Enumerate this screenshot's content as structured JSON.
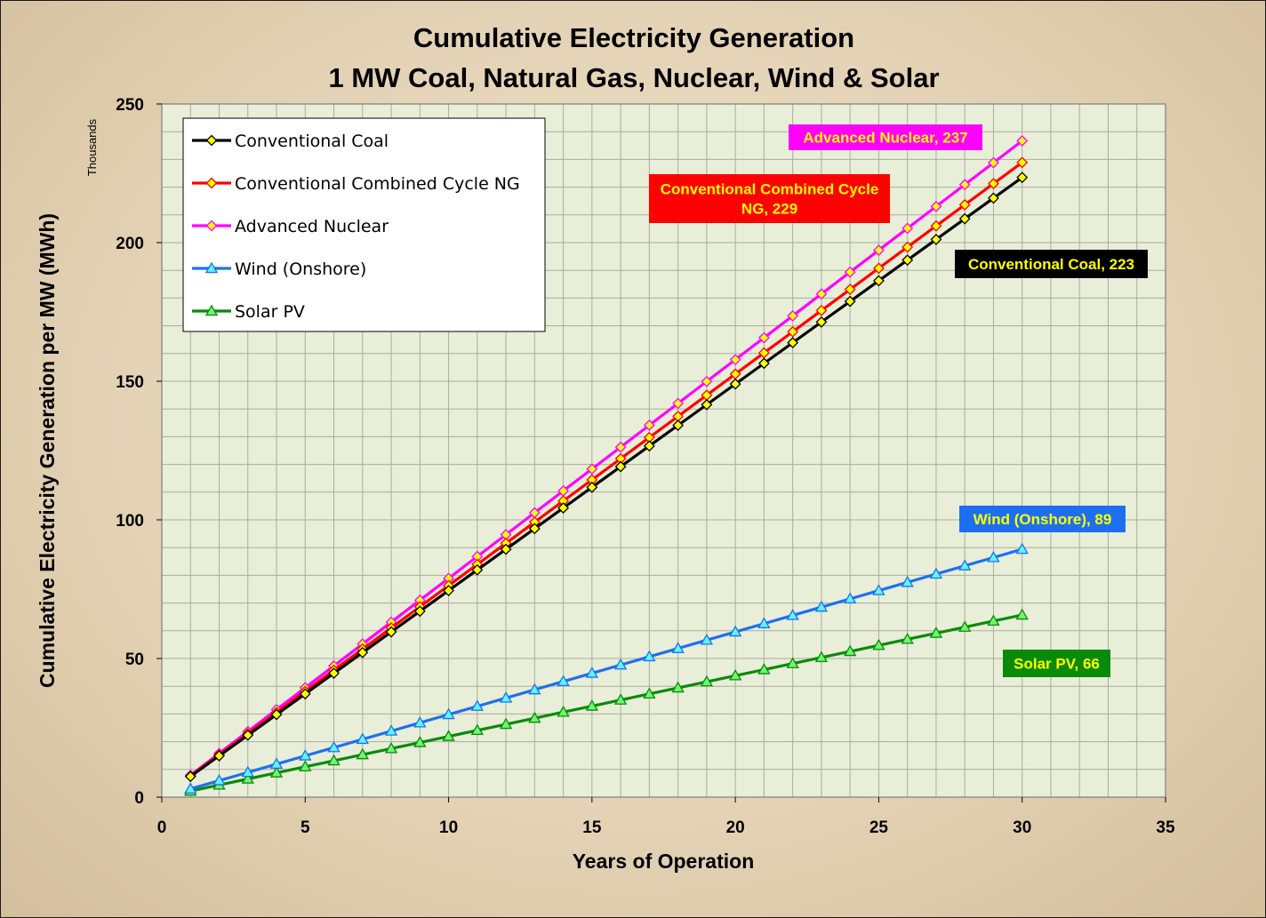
{
  "chart_data": {
    "type": "line",
    "title": "Cumulative Electricity Generation",
    "subtitle": "1 MW Coal, Natural Gas, Nuclear, Wind & Solar",
    "xlabel": "Years of Operation",
    "ylabel": "Cumulative Electricity Generation per MW  (MWh)",
    "yunits": "Thousands",
    "xlim": [
      0,
      35
    ],
    "ylim": [
      0,
      250
    ],
    "xticks": [
      0,
      5,
      10,
      15,
      20,
      25,
      30,
      35
    ],
    "yticks": [
      0,
      50,
      100,
      150,
      200,
      250
    ],
    "grid": true,
    "legend_position": "top-left",
    "x": [
      1,
      2,
      3,
      4,
      5,
      6,
      7,
      8,
      9,
      10,
      11,
      12,
      13,
      14,
      15,
      16,
      17,
      18,
      19,
      20,
      21,
      22,
      23,
      24,
      25,
      26,
      27,
      28,
      29,
      30
    ],
    "series": [
      {
        "name": "Conventional Coal",
        "color": "#000000",
        "marker": "diamond",
        "marker_fill": "#ffff00",
        "per_year": 7.45,
        "values": [
          7.45,
          14.9,
          22.35,
          29.8,
          37.25,
          44.7,
          52.15,
          59.6,
          67.05,
          74.5,
          81.95,
          89.4,
          96.85,
          104.3,
          111.75,
          119.2,
          126.65,
          134.1,
          141.55,
          149,
          156.45,
          163.9,
          171.35,
          178.8,
          186.25,
          193.7,
          201.15,
          208.6,
          216.05,
          223.5
        ]
      },
      {
        "name": "Conventional Combined Cycle NG",
        "color": "#ff0000",
        "marker": "diamond",
        "marker_fill": "#ffff00",
        "per_year": 7.63,
        "values": [
          7.63,
          15.26,
          22.89,
          30.52,
          38.15,
          45.78,
          53.41,
          61.04,
          68.67,
          76.3,
          83.93,
          91.56,
          99.19,
          106.82,
          114.45,
          122.08,
          129.71,
          137.34,
          144.97,
          152.6,
          160.23,
          167.86,
          175.49,
          183.12,
          190.75,
          198.38,
          206.01,
          213.64,
          221.27,
          228.9
        ]
      },
      {
        "name": "Advanced Nuclear",
        "color": "#ff00ff",
        "marker": "diamond",
        "marker_fill": "#ffff00",
        "per_year": 7.89,
        "values": [
          7.89,
          15.78,
          23.67,
          31.56,
          39.45,
          47.34,
          55.23,
          63.12,
          71.01,
          78.9,
          86.79,
          94.68,
          102.57,
          110.46,
          118.35,
          126.24,
          134.13,
          142.02,
          149.91,
          157.8,
          165.69,
          173.58,
          181.47,
          189.36,
          197.25,
          205.14,
          213.03,
          220.92,
          228.81,
          236.7
        ]
      },
      {
        "name": "Wind (Onshore)",
        "color": "#1e6ff0",
        "marker": "triangle",
        "marker_fill": "#5ff5ff",
        "per_year": 2.98,
        "values": [
          2.98,
          5.96,
          8.94,
          11.92,
          14.9,
          17.88,
          20.86,
          23.84,
          26.82,
          29.8,
          32.78,
          35.76,
          38.74,
          41.72,
          44.7,
          47.68,
          50.66,
          53.64,
          56.62,
          59.6,
          62.58,
          65.56,
          68.54,
          71.52,
          74.5,
          77.48,
          80.46,
          83.44,
          86.42,
          89.4
        ]
      },
      {
        "name": "Solar PV",
        "color": "#0a8a0a",
        "marker": "triangle",
        "marker_fill": "#6ff56f",
        "per_year": 2.19,
        "values": [
          2.19,
          4.38,
          6.57,
          8.76,
          10.95,
          13.14,
          15.33,
          17.52,
          19.71,
          21.9,
          24.09,
          26.28,
          28.47,
          30.66,
          32.85,
          35.04,
          37.23,
          39.42,
          41.61,
          43.8,
          45.99,
          48.18,
          50.37,
          52.56,
          54.75,
          56.94,
          59.13,
          61.32,
          63.51,
          65.7
        ]
      }
    ],
    "annotations": [
      {
        "lines": [
          "Advanced Nuclear,  237"
        ],
        "bg": "#ff00ff",
        "color": "#ffff00"
      },
      {
        "lines": [
          "Conventional Combined Cycle",
          "NG,  229"
        ],
        "bg": "#ff0000",
        "color": "#ffff00"
      },
      {
        "lines": [
          "Conventional Coal,  223"
        ],
        "bg": "#000000",
        "color": "#ffff00"
      },
      {
        "lines": [
          "Wind (Onshore),  89"
        ],
        "bg": "#1e6ff0",
        "color": "#ffff00"
      },
      {
        "lines": [
          "Solar PV,  66"
        ],
        "bg": "#0a8a0a",
        "color": "#ffff00"
      }
    ],
    "plot_bg": "#e8eed8",
    "grid_color": "#a9ad9c"
  }
}
